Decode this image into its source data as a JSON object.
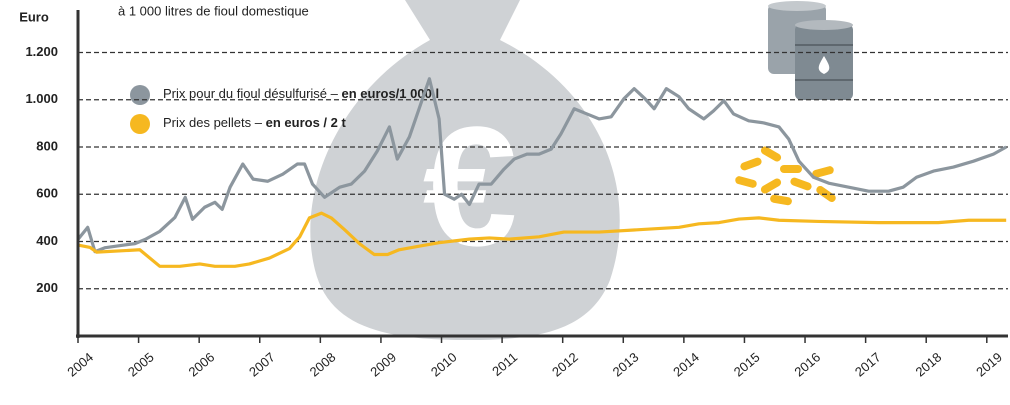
{
  "chart_data": {
    "type": "line",
    "subtitle": "à 1 000 litres de fioul domestique",
    "ylabel": "Euro",
    "xlim": [
      2004,
      2019.35
    ],
    "ylim": [
      0,
      1380
    ],
    "xticks": [
      2004,
      2005,
      2006,
      2007,
      2008,
      2009,
      2010,
      2011,
      2012,
      2013,
      2014,
      2015,
      2016,
      2017,
      2018,
      2019
    ],
    "yticks": [
      200,
      400,
      600,
      800,
      {
        "value": 1000,
        "label": "1.000"
      },
      {
        "value": 1200,
        "label": "1.200"
      }
    ],
    "grid": true,
    "series": [
      {
        "name": "Prix pour du fioul désulfurisé –",
        "unit": "en euros/1 000 l",
        "color": "#8c969e",
        "x": [
          2004.0,
          2004.16,
          2004.28,
          2004.45,
          2004.7,
          2004.94,
          2005.11,
          2005.35,
          2005.6,
          2005.77,
          2005.89,
          2006.09,
          2006.26,
          2006.38,
          2006.51,
          2006.72,
          2006.89,
          2007.13,
          2007.38,
          2007.62,
          2007.74,
          2007.87,
          2008.07,
          2008.32,
          2008.51,
          2008.73,
          2008.94,
          2009.14,
          2009.27,
          2009.47,
          2009.63,
          2009.8,
          2009.96,
          2010.05,
          2010.21,
          2010.33,
          2010.46,
          2010.62,
          2010.82,
          2011.03,
          2011.2,
          2011.41,
          2011.61,
          2011.81,
          2011.97,
          2012.19,
          2012.4,
          2012.6,
          2012.8,
          2013.01,
          2013.18,
          2013.36,
          2013.51,
          2013.71,
          2013.92,
          2014.08,
          2014.33,
          2014.49,
          2014.66,
          2014.82,
          2015.07,
          2015.32,
          2015.57,
          2015.73,
          2015.9,
          2016.14,
          2016.39,
          2016.72,
          2017.05,
          2017.38,
          2017.62,
          2017.84,
          2018.12,
          2018.45,
          2018.78,
          2019.11,
          2019.32
        ],
        "values": [
          409,
          460,
          357,
          374,
          383,
          391,
          409,
          443,
          502,
          587,
          494,
          545,
          566,
          536,
          630,
          728,
          664,
          655,
          685,
          728,
          728,
          643,
          587,
          630,
          643,
          698,
          783,
          885,
          749,
          843,
          962,
          1089,
          919,
          600,
          579,
          600,
          557,
          643,
          643,
          706,
          749,
          770,
          770,
          791,
          855,
          962,
          940,
          919,
          928,
          1004,
          1047,
          1004,
          962,
          1047,
          1013,
          962,
          919,
          953,
          996,
          940,
          911,
          902,
          885,
          834,
          740,
          672,
          647,
          630,
          613,
          613,
          630,
          672,
          698,
          715,
          740,
          770,
          800
        ]
      },
      {
        "name": "Prix des pellets –",
        "unit": "en euros / 2 t",
        "color": "#f6b820",
        "x": [
          2004.0,
          2004.2,
          2004.31,
          2005.02,
          2005.35,
          2005.68,
          2006.01,
          2006.26,
          2006.59,
          2006.83,
          2007.16,
          2007.49,
          2007.66,
          2007.82,
          2008.02,
          2008.18,
          2008.4,
          2008.65,
          2008.89,
          2009.11,
          2009.3,
          2009.63,
          2009.96,
          2010.46,
          2010.79,
          2011.12,
          2011.61,
          2012.02,
          2012.6,
          2013.26,
          2013.92,
          2014.25,
          2014.58,
          2014.91,
          2015.24,
          2015.57,
          2016.22,
          2017.21,
          2018.2,
          2018.7,
          2019.32
        ],
        "values": [
          385,
          375,
          355,
          365,
          295,
          295,
          305,
          295,
          295,
          305,
          330,
          370,
          420,
          500,
          520,
          500,
          450,
          390,
          345,
          345,
          365,
          380,
          395,
          410,
          415,
          410,
          420,
          440,
          440,
          450,
          460,
          475,
          480,
          495,
          500,
          490,
          485,
          480,
          480,
          490,
          490
        ]
      }
    ]
  }
}
